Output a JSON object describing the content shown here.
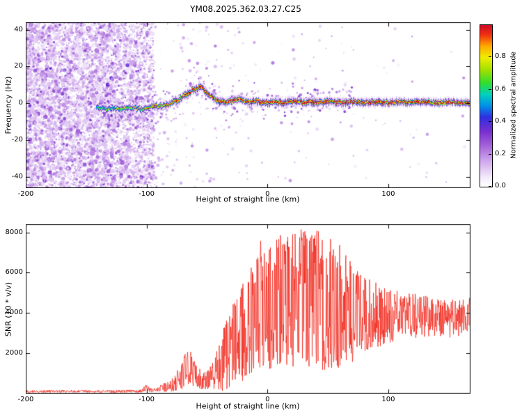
{
  "figure_title": "YM08.2025.362.03.27.C25",
  "chart_data": [
    {
      "type": "heatmap",
      "name": "doppler-spectrogram",
      "title": "YM08.2025.362.03.27.C25",
      "xlabel": "Height of straight line (km)",
      "ylabel": "Frequency (Hz)",
      "xlim": [
        -200,
        168
      ],
      "ylim": [
        -46,
        44
      ],
      "xticks": [
        -200,
        -100,
        0,
        100
      ],
      "yticks": [
        40,
        20,
        0,
        -20,
        -40
      ],
      "grid": false,
      "legend": false,
      "seed": 1362,
      "colorbar": {
        "label": "Normalized spectral amplitude",
        "ticks": [
          "0.0",
          "0.2",
          "0.4",
          "0.6",
          "0.8"
        ],
        "tick_values": [
          0,
          0.2,
          0.4,
          0.6,
          0.8
        ],
        "range": [
          0,
          1
        ]
      },
      "colormap_stops": [
        {
          "v": 0.0,
          "color": "#ffffff"
        },
        {
          "v": 0.06,
          "color": "#f3eafb"
        },
        {
          "v": 0.16,
          "color": "#cfa6ec"
        },
        {
          "v": 0.26,
          "color": "#a05fd8"
        },
        {
          "v": 0.34,
          "color": "#7a2fd0"
        },
        {
          "v": 0.43,
          "color": "#2f2fe0"
        },
        {
          "v": 0.5,
          "color": "#0090e8"
        },
        {
          "v": 0.57,
          "color": "#00d0c0"
        },
        {
          "v": 0.64,
          "color": "#30dd30"
        },
        {
          "v": 0.72,
          "color": "#a0e000"
        },
        {
          "v": 0.8,
          "color": "#f0ee00"
        },
        {
          "v": 0.87,
          "color": "#ffa800"
        },
        {
          "v": 0.94,
          "color": "#f03010"
        },
        {
          "v": 1.0,
          "color": "#cc0a28"
        }
      ],
      "noise_region": {
        "x_range": [
          -200,
          -94
        ],
        "amplitude_range": [
          0.05,
          0.4
        ],
        "description": "dense low-amplitude speckle noise below ~-100 km"
      },
      "echo_trace": {
        "x": [
          -142,
          -135,
          -128,
          -120,
          -112,
          -105,
          -98,
          -92,
          -86,
          -80,
          -74,
          -68,
          -62,
          -56,
          -52,
          -48,
          -44,
          -40,
          -36,
          -32,
          -28,
          -24,
          -20,
          -16,
          -12,
          -8,
          -4,
          0,
          6,
          12,
          18,
          24,
          30,
          36,
          42,
          50,
          60,
          70,
          80,
          90,
          100,
          110,
          120,
          130,
          140,
          150,
          160,
          168
        ],
        "center_freq_hz": [
          -2,
          -3,
          -2.5,
          -3,
          -2,
          -3,
          -2,
          -1.5,
          -1,
          0.5,
          2,
          4.5,
          7.5,
          9,
          7,
          4.5,
          2.5,
          1,
          0.5,
          1,
          2,
          2.5,
          1.5,
          0.5,
          1,
          1.5,
          0.5,
          0.5,
          1,
          0.5,
          1.5,
          1,
          0.5,
          1,
          0.5,
          1,
          0.5,
          1,
          0.5,
          1,
          0.5,
          1,
          0.5,
          1,
          0.5,
          1,
          0.5,
          0.5
        ],
        "peak_amplitude": [
          0.55,
          0.6,
          0.55,
          0.65,
          0.6,
          0.65,
          0.7,
          0.75,
          0.8,
          0.85,
          0.85,
          0.9,
          0.95,
          0.95,
          0.9,
          0.9,
          0.92,
          0.95,
          0.95,
          0.92,
          0.95,
          0.95,
          0.95,
          0.95,
          0.95,
          0.95,
          0.95,
          0.95,
          0.95,
          0.95,
          0.95,
          0.95,
          0.95,
          0.95,
          0.95,
          0.95,
          0.95,
          0.95,
          0.95,
          0.95,
          0.95,
          0.95,
          0.95,
          0.95,
          0.95,
          0.95,
          0.95,
          0.95
        ]
      }
    },
    {
      "type": "line",
      "name": "snr-profile",
      "xlabel": "Height of straight line (km)",
      "ylabel": "SNR (10 * v/v)",
      "xlim": [
        -200,
        168
      ],
      "ylim": [
        0,
        8400
      ],
      "xticks": [
        -200,
        -100,
        0,
        100
      ],
      "yticks": [
        2000,
        4000,
        6000,
        8000
      ],
      "grid": false,
      "legend": false,
      "seed": 77,
      "line_color": "#f02418",
      "envelope": {
        "x": [
          -200,
          -130,
          -105,
          -100,
          -97,
          -92,
          -88,
          -82,
          -76,
          -70,
          -66,
          -62,
          -58,
          -54,
          -50,
          -46,
          -42,
          -38,
          -34,
          -30,
          -26,
          -22,
          -18,
          -14,
          -10,
          -6,
          -2,
          2,
          6,
          10,
          15,
          20,
          25,
          30,
          35,
          40,
          45,
          50,
          55,
          60,
          65,
          70,
          75,
          80,
          90,
          100,
          110,
          120,
          130,
          140,
          150,
          160,
          168
        ],
        "mean": [
          110,
          110,
          120,
          300,
          170,
          160,
          260,
          380,
          550,
          950,
          1400,
          1150,
          750,
          620,
          680,
          850,
          1150,
          1550,
          1950,
          2350,
          2650,
          2950,
          3250,
          3650,
          3950,
          4150,
          4300,
          4400,
          4500,
          4550,
          4600,
          4650,
          4700,
          4750,
          4700,
          4700,
          4600,
          4450,
          4300,
          4200,
          4100,
          4050,
          3950,
          3900,
          3850,
          3800,
          3850,
          3900,
          3850,
          3800,
          3750,
          3850,
          3950
        ],
        "spread": [
          60,
          60,
          70,
          190,
          100,
          90,
          160,
          280,
          420,
          750,
          1000,
          850,
          520,
          420,
          470,
          650,
          950,
          1350,
          1750,
          1950,
          2150,
          2350,
          2550,
          2750,
          2950,
          3050,
          3150,
          3250,
          3300,
          3350,
          3400,
          3400,
          3400,
          3450,
          3400,
          3400,
          3500,
          3500,
          3300,
          3000,
          2800,
          2500,
          2300,
          2000,
          1700,
          1400,
          1250,
          1150,
          1050,
          950,
          900,
          850,
          800
        ]
      }
    }
  ]
}
